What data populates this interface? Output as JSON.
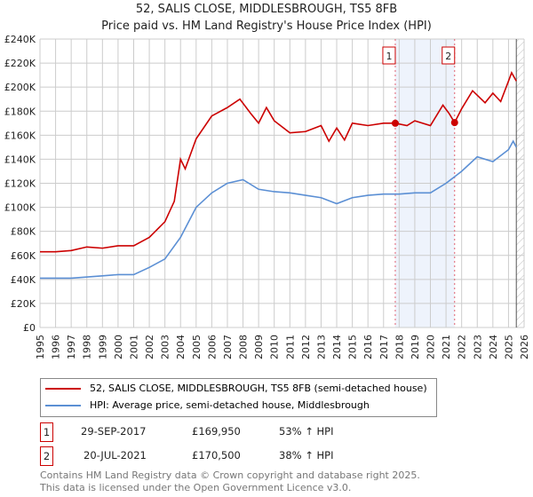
{
  "chart_data": {
    "type": "line",
    "title": "52, SALIS CLOSE, MIDDLESBROUGH, TS5 8FB",
    "subtitle": "Price paid vs. HM Land Registry's House Price Index (HPI)",
    "xlim": [
      1995,
      2026
    ],
    "ylim": [
      0,
      240000
    ],
    "x_ticks": [
      "1995",
      "1996",
      "1997",
      "1998",
      "1999",
      "2000",
      "2001",
      "2002",
      "2003",
      "2004",
      "2005",
      "2006",
      "2007",
      "2008",
      "2009",
      "2010",
      "2011",
      "2012",
      "2013",
      "2014",
      "2015",
      "2016",
      "2017",
      "2018",
      "2019",
      "2020",
      "2021",
      "2022",
      "2023",
      "2024",
      "2025",
      "2026"
    ],
    "y_ticks": [
      "£0",
      "£20K",
      "£40K",
      "£60K",
      "£80K",
      "£100K",
      "£120K",
      "£140K",
      "£160K",
      "£180K",
      "£200K",
      "£220K",
      "£240K"
    ],
    "grid": true,
    "series": [
      {
        "name": "52, SALIS CLOSE, MIDDLESBROUGH, TS5 8FB (semi-detached house)",
        "color": "#cc0000",
        "x": [
          1995,
          1996,
          1997,
          1998,
          1999,
          2000,
          2001,
          2002,
          2003,
          2003.6,
          2004,
          2004.3,
          2005,
          2006,
          2007,
          2007.8,
          2008.5,
          2009,
          2009.5,
          2010,
          2011,
          2012,
          2013,
          2013.5,
          2014,
          2014.5,
          2015,
          2016,
          2017,
          2017.75,
          2018.5,
          2019,
          2020,
          2020.8,
          2021.2,
          2021.55,
          2022,
          2022.7,
          2023.5,
          2024,
          2024.5,
          2025,
          2025.2,
          2025.5
        ],
        "y": [
          63000,
          63000,
          64000,
          67000,
          66000,
          68000,
          68000,
          75000,
          88000,
          105000,
          140000,
          132000,
          157000,
          176000,
          183000,
          190000,
          178000,
          170000,
          183000,
          172000,
          162000,
          163000,
          168000,
          155000,
          166000,
          156000,
          170000,
          168000,
          170000,
          169950,
          168000,
          172000,
          168000,
          185000,
          178000,
          170500,
          182000,
          197000,
          187000,
          195000,
          188000,
          205000,
          212000,
          205000
        ]
      },
      {
        "name": "HPI: Average price, semi-detached house, Middlesbrough",
        "color": "#5b8fd4",
        "x": [
          1995,
          1997,
          1999,
          2000,
          2001,
          2002,
          2003,
          2004,
          2005,
          2006,
          2007,
          2008,
          2009,
          2010,
          2011,
          2012,
          2013,
          2014,
          2015,
          2016,
          2017,
          2018,
          2019,
          2020,
          2021,
          2022,
          2023,
          2024,
          2025,
          2025.3,
          2025.5
        ],
        "y": [
          41000,
          41000,
          43000,
          44000,
          44000,
          50000,
          57000,
          75000,
          100000,
          112000,
          120000,
          123000,
          115000,
          113000,
          112000,
          110000,
          108000,
          103000,
          108000,
          110000,
          111000,
          111000,
          112000,
          112000,
          120000,
          130000,
          142000,
          138000,
          148000,
          155000,
          150000
        ]
      }
    ],
    "sales": [
      {
        "label": "1",
        "date": "29-SEP-2017",
        "x": 2017.75,
        "price": "£169,950",
        "value": 169950,
        "hpi": "53% ↑ HPI"
      },
      {
        "label": "2",
        "date": "20-JUL-2021",
        "x": 2021.55,
        "price": "£170,500",
        "value": 170500,
        "hpi": "38% ↑ HPI"
      }
    ],
    "shaded_range": [
      2017.75,
      2021.55
    ],
    "forecast_from": 2025.5
  },
  "footer": {
    "line1": "Contains HM Land Registry data © Crown copyright and database right 2025.",
    "line2": "This data is licensed under the Open Government Licence v3.0."
  }
}
